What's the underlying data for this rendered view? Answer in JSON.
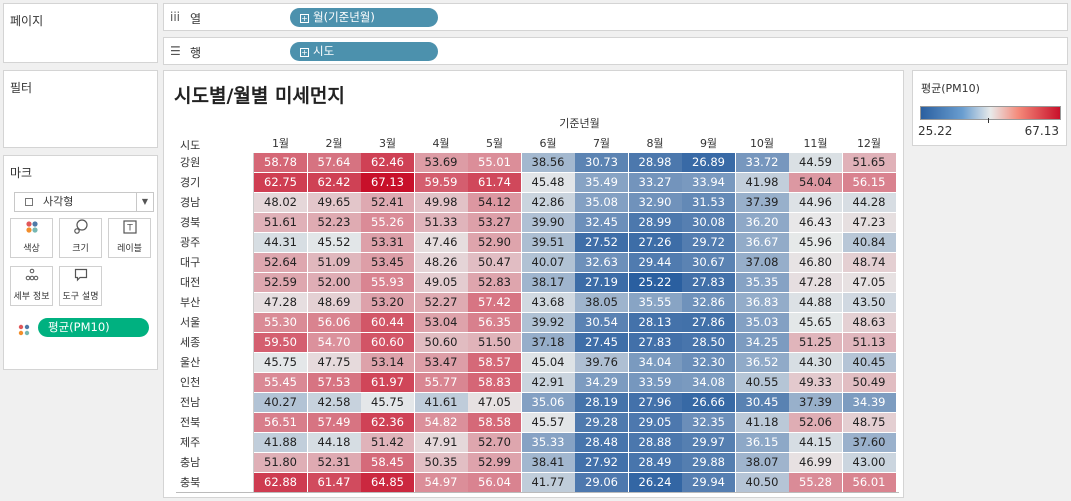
{
  "side": {
    "pages_title": "페이지",
    "filters_title": "필터",
    "marks_title": "마크",
    "mark_type": "사각형",
    "buttons": [
      {
        "icon": "color-icon",
        "label": "색상"
      },
      {
        "icon": "size-icon",
        "label": "크기"
      },
      {
        "icon": "label-icon",
        "label": "레이블"
      },
      {
        "icon": "detail-icon",
        "label": "세부 정보"
      },
      {
        "icon": "tooltip-icon",
        "label": "도구 설명"
      }
    ],
    "measure_pill": "평균(PM10)"
  },
  "shelves": {
    "columns_label": "열",
    "columns_pill": "월(기준년월)",
    "rows_label": "행",
    "rows_pill": "시도"
  },
  "legend": {
    "title": "평균(PM10)",
    "min": "25.22",
    "max": "67.13",
    "colors": {
      "low": "#2a5fa0",
      "mid": "#e8eaea",
      "high": "#c8102a"
    }
  },
  "chart_data": {
    "type": "heatmap",
    "title": "시도별/월별 미세먼지",
    "column_group_label": "기준년월",
    "row_header": "시도",
    "columns": [
      "1월",
      "2월",
      "3월",
      "4월",
      "5월",
      "6월",
      "7월",
      "8월",
      "9월",
      "10월",
      "11월",
      "12월"
    ],
    "rows": [
      "강원",
      "경기",
      "경남",
      "경북",
      "광주",
      "대구",
      "대전",
      "부산",
      "서울",
      "세종",
      "울산",
      "인천",
      "전남",
      "전북",
      "제주",
      "충남",
      "충북"
    ],
    "values": [
      [
        58.78,
        57.64,
        62.46,
        53.69,
        55.01,
        38.56,
        30.73,
        28.98,
        26.89,
        33.72,
        44.59,
        51.65
      ],
      [
        62.75,
        62.42,
        67.13,
        59.59,
        61.74,
        45.48,
        35.49,
        33.27,
        33.94,
        41.98,
        54.04,
        56.15
      ],
      [
        48.02,
        49.65,
        52.41,
        49.98,
        54.12,
        42.86,
        35.08,
        32.9,
        31.53,
        37.39,
        44.96,
        44.28
      ],
      [
        51.61,
        52.23,
        55.26,
        51.33,
        53.27,
        39.9,
        32.45,
        28.99,
        30.08,
        36.2,
        46.43,
        47.23
      ],
      [
        44.31,
        45.52,
        53.31,
        47.46,
        52.9,
        39.51,
        27.52,
        27.26,
        29.72,
        36.67,
        45.96,
        40.84
      ],
      [
        52.64,
        51.09,
        53.45,
        48.26,
        50.47,
        40.07,
        32.63,
        29.44,
        30.67,
        37.08,
        46.8,
        48.74
      ],
      [
        52.59,
        52.0,
        55.93,
        49.05,
        52.83,
        38.17,
        27.19,
        25.22,
        27.83,
        35.35,
        47.28,
        47.05
      ],
      [
        47.28,
        48.69,
        53.2,
        52.27,
        57.42,
        43.68,
        38.05,
        35.55,
        32.86,
        36.83,
        44.88,
        43.5
      ],
      [
        55.3,
        56.06,
        60.44,
        53.04,
        56.35,
        39.92,
        30.54,
        28.13,
        27.86,
        35.03,
        45.65,
        48.63
      ],
      [
        59.5,
        54.7,
        60.6,
        50.6,
        51.5,
        37.18,
        27.45,
        27.83,
        28.5,
        34.25,
        51.25,
        51.13
      ],
      [
        45.75,
        47.75,
        53.14,
        53.47,
        58.57,
        45.04,
        39.76,
        34.04,
        32.3,
        36.52,
        44.3,
        40.45
      ],
      [
        55.45,
        57.53,
        61.97,
        55.77,
        58.83,
        42.91,
        34.29,
        33.59,
        34.08,
        40.55,
        49.33,
        50.49
      ],
      [
        40.27,
        42.58,
        45.75,
        41.61,
        47.05,
        35.06,
        28.19,
        27.96,
        26.66,
        30.45,
        37.39,
        34.39
      ],
      [
        56.51,
        57.49,
        62.36,
        54.82,
        58.58,
        45.57,
        29.28,
        29.05,
        32.35,
        41.18,
        52.06,
        48.75
      ],
      [
        41.88,
        44.18,
        51.42,
        47.91,
        52.7,
        35.33,
        28.48,
        28.88,
        29.97,
        36.15,
        44.15,
        37.6
      ],
      [
        51.8,
        52.31,
        58.45,
        50.35,
        52.99,
        38.41,
        27.92,
        28.49,
        29.88,
        38.07,
        46.99,
        43.0
      ],
      [
        62.88,
        61.47,
        64.85,
        54.97,
        56.04,
        41.77,
        29.06,
        26.24,
        29.94,
        40.5,
        55.28,
        56.01
      ]
    ],
    "color_range": [
      25.22,
      67.13
    ],
    "color_mid": 46.17
  }
}
